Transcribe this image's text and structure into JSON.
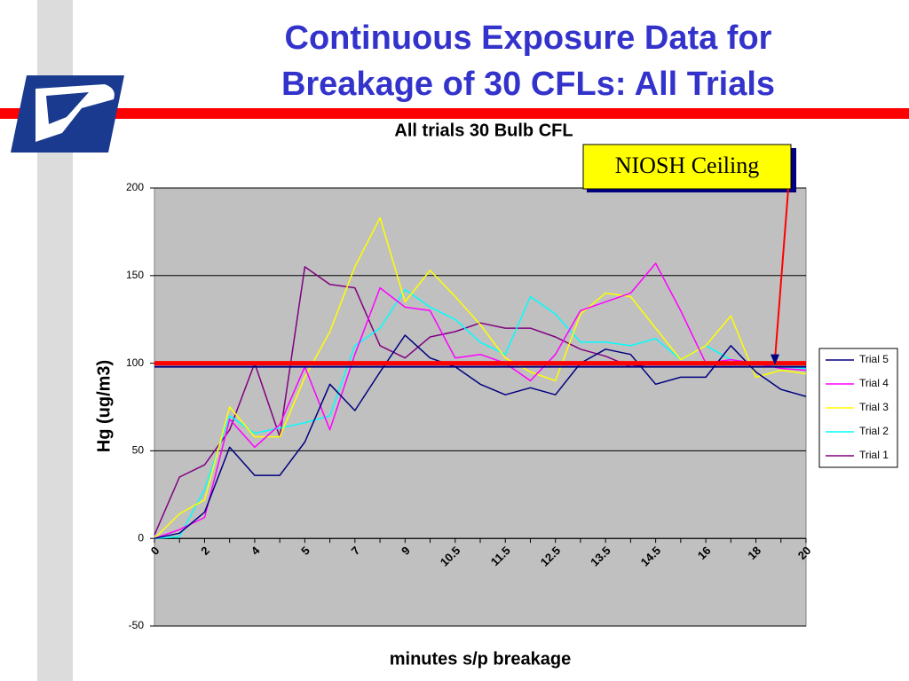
{
  "slide_title": [
    "Continuous Exposure Data for",
    "Breakage of 30 CFLs: All Trials"
  ],
  "chart_data": {
    "type": "line",
    "title": "All trials 30 Bulb CFL",
    "y_label": "Hg (ug/m3)",
    "x_label": "minutes s/p breakage",
    "categories": [
      "0",
      null,
      "2",
      null,
      "4",
      null,
      "5",
      null,
      "7",
      null,
      "9",
      null,
      "10.5",
      null,
      "11.5",
      null,
      "12.5",
      null,
      "13.5",
      null,
      "14.5",
      null,
      "16",
      null,
      "18",
      null,
      "20"
    ],
    "ylim": [
      -50,
      200
    ],
    "yticks": [
      -50,
      0,
      50,
      100,
      150,
      200
    ],
    "grid": true,
    "legend": "right",
    "series": [
      {
        "name": "Trial 5",
        "color": "#000080",
        "values": [
          0,
          3,
          15,
          52,
          36,
          36,
          55,
          88,
          73,
          95,
          116,
          103,
          98,
          88,
          82,
          86,
          82,
          100,
          108,
          105,
          88,
          92,
          92,
          110,
          95,
          85,
          81
        ]
      },
      {
        "name": "Trial 4",
        "color": "#ff00ff",
        "values": [
          0,
          5,
          12,
          68,
          52,
          65,
          98,
          62,
          105,
          143,
          132,
          130,
          103,
          105,
          100,
          90,
          105,
          130,
          135,
          140,
          157,
          130,
          100,
          102,
          100,
          97,
          96
        ]
      },
      {
        "name": "Trial 3",
        "color": "#ffff00",
        "values": [
          0,
          14,
          22,
          75,
          58,
          58,
          92,
          118,
          155,
          183,
          135,
          153,
          138,
          122,
          103,
          95,
          90,
          128,
          140,
          138,
          120,
          102,
          110,
          127,
          92,
          96,
          94
        ]
      },
      {
        "name": "Trial 2",
        "color": "#00ffff",
        "values": [
          0,
          1,
          28,
          70,
          60,
          63,
          66,
          70,
          110,
          120,
          142,
          132,
          125,
          112,
          105,
          138,
          128,
          112,
          112,
          110,
          114,
          102,
          110,
          102,
          100,
          98,
          97
        ]
      },
      {
        "name": "Trial 1",
        "color": "#800080",
        "values": [
          2,
          35,
          42,
          62,
          100,
          58,
          155,
          145,
          143,
          110,
          103,
          115,
          118,
          123,
          120,
          120,
          115,
          108,
          104,
          98,
          100,
          100,
          100,
          100,
          100,
          100,
          100
        ]
      }
    ],
    "ceiling": {
      "label": "NIOSH Ceiling",
      "value": 100,
      "color": "#ff0000"
    }
  }
}
